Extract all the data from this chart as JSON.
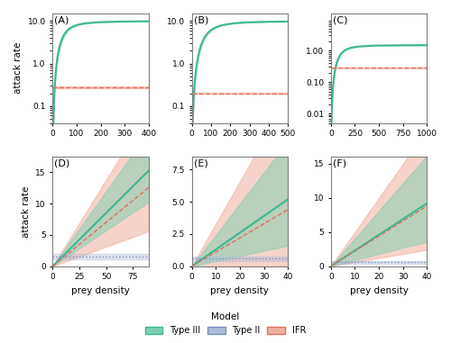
{
  "panels": [
    {
      "label": "A",
      "xmax": 400,
      "xticks": [
        0,
        100,
        200,
        300,
        400
      ],
      "ylim_log": [
        0.04,
        15
      ],
      "yticks_log": [
        0.1,
        1.0,
        10.0
      ],
      "ytick_labels_log": [
        "0.1",
        "1.0",
        "10.0"
      ],
      "type": "top",
      "typeIII_a": 10,
      "typeIII_b": 50,
      "IFR_val": 0.28,
      "typeIII_noise": 0.3,
      "IFR_noise": 0.04
    },
    {
      "label": "B",
      "xmax": 500,
      "xticks": [
        0,
        100,
        200,
        300,
        400,
        500
      ],
      "ylim_log": [
        0.04,
        15
      ],
      "yticks_log": [
        0.1,
        1.0,
        10.0
      ],
      "ytick_labels_log": [
        "0.1",
        "1.0",
        "10.0"
      ],
      "type": "top",
      "typeIII_a": 10,
      "typeIII_b": 80,
      "IFR_val": 0.2,
      "typeIII_noise": 0.3,
      "IFR_noise": 0.04
    },
    {
      "label": "C",
      "xmax": 1000,
      "xticks": [
        0,
        250,
        500,
        750,
        1000
      ],
      "ylim_log": [
        0.005,
        15
      ],
      "yticks_log": [
        0.01,
        0.1,
        1.0
      ],
      "ytick_labels_log": [
        "0.01",
        "0.10",
        "1.00"
      ],
      "type": "top",
      "typeIII_a": 1.5,
      "typeIII_b": 100,
      "IFR_val": 0.28,
      "typeIII_noise": 0.15,
      "IFR_noise": 0.04
    },
    {
      "label": "D",
      "xmax": 90,
      "xticks": [
        0,
        25,
        50,
        75
      ],
      "ylim": [
        0,
        17.5
      ],
      "yticks": [
        0,
        5,
        10,
        15
      ],
      "type": "bottom",
      "typeIII_slope": 0.17,
      "typeII_val": 1.5,
      "IFR_slope": 0.14,
      "noise_III": 2.5,
      "noise_IFR": 3.5
    },
    {
      "label": "E",
      "xmax": 40,
      "xticks": [
        0,
        10,
        20,
        30,
        40
      ],
      "ylim": [
        0,
        8.5
      ],
      "yticks": [
        0.0,
        2.5,
        5.0,
        7.5
      ],
      "type": "bottom",
      "typeIII_slope": 0.13,
      "typeII_val": 0.6,
      "IFR_slope": 0.11,
      "noise_III": 1.8,
      "noise_IFR": 2.5
    },
    {
      "label": "F",
      "xmax": 40,
      "xticks": [
        0,
        10,
        20,
        30,
        40
      ],
      "ylim": [
        0,
        16
      ],
      "yticks": [
        0,
        5,
        10,
        15
      ],
      "type": "bottom",
      "typeIII_slope": 0.23,
      "typeII_val": 0.6,
      "IFR_slope": 0.22,
      "noise_III": 2.8,
      "noise_IFR": 3.2
    }
  ],
  "colors": {
    "typeIII": "#3db892",
    "typeIII_fill": "#7ecfb0",
    "typeII": "#7b8fc0",
    "typeII_fill": "#adbcd8",
    "IFR": "#e07060",
    "IFR_fill": "#f0b0a0"
  },
  "legend_label": "Model",
  "typeIII_label": "Type III",
  "typeII_label": "Type II",
  "IFR_label": "IFR",
  "xlabel": "prey density",
  "ylabel": "attack rate"
}
